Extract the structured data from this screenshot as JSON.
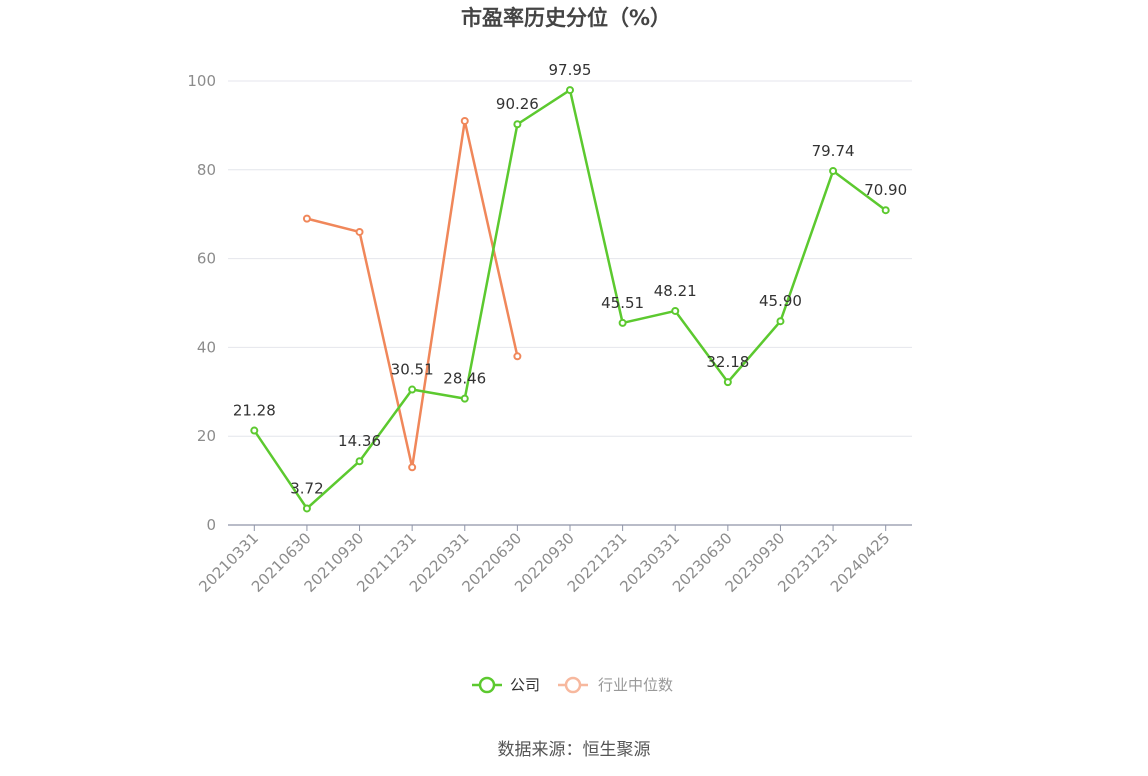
{
  "chart_data": {
    "type": "line",
    "title": "市盈率历史分位（%）",
    "categories": [
      "20210331",
      "20210630",
      "20210930",
      "20211231",
      "20220331",
      "20220630",
      "20220930",
      "20221231",
      "20230331",
      "20230630",
      "20230930",
      "20231231",
      "20240425"
    ],
    "ylim": [
      0,
      100
    ],
    "yticks": [
      0,
      20,
      40,
      60,
      80,
      100
    ],
    "grid": true,
    "legend_position": "bottom",
    "series": [
      {
        "name": "公司",
        "color": "#5cc92f",
        "values": [
          21.28,
          3.72,
          14.36,
          30.51,
          28.46,
          90.26,
          97.95,
          45.51,
          48.21,
          32.18,
          45.9,
          79.74,
          70.9
        ],
        "labels": [
          "21.28",
          "3.72",
          "14.36",
          "30.51",
          "28.46",
          "90.26",
          "97.95",
          "45.51",
          "48.21",
          "32.18",
          "45.90",
          "79.74",
          "70.90"
        ]
      },
      {
        "name": "行业中位数",
        "color": "#f0875a",
        "values": [
          null,
          69,
          66,
          13,
          91,
          38,
          null,
          null,
          null,
          null,
          null,
          null,
          null
        ]
      }
    ]
  },
  "source": "数据来源：恒生聚源"
}
